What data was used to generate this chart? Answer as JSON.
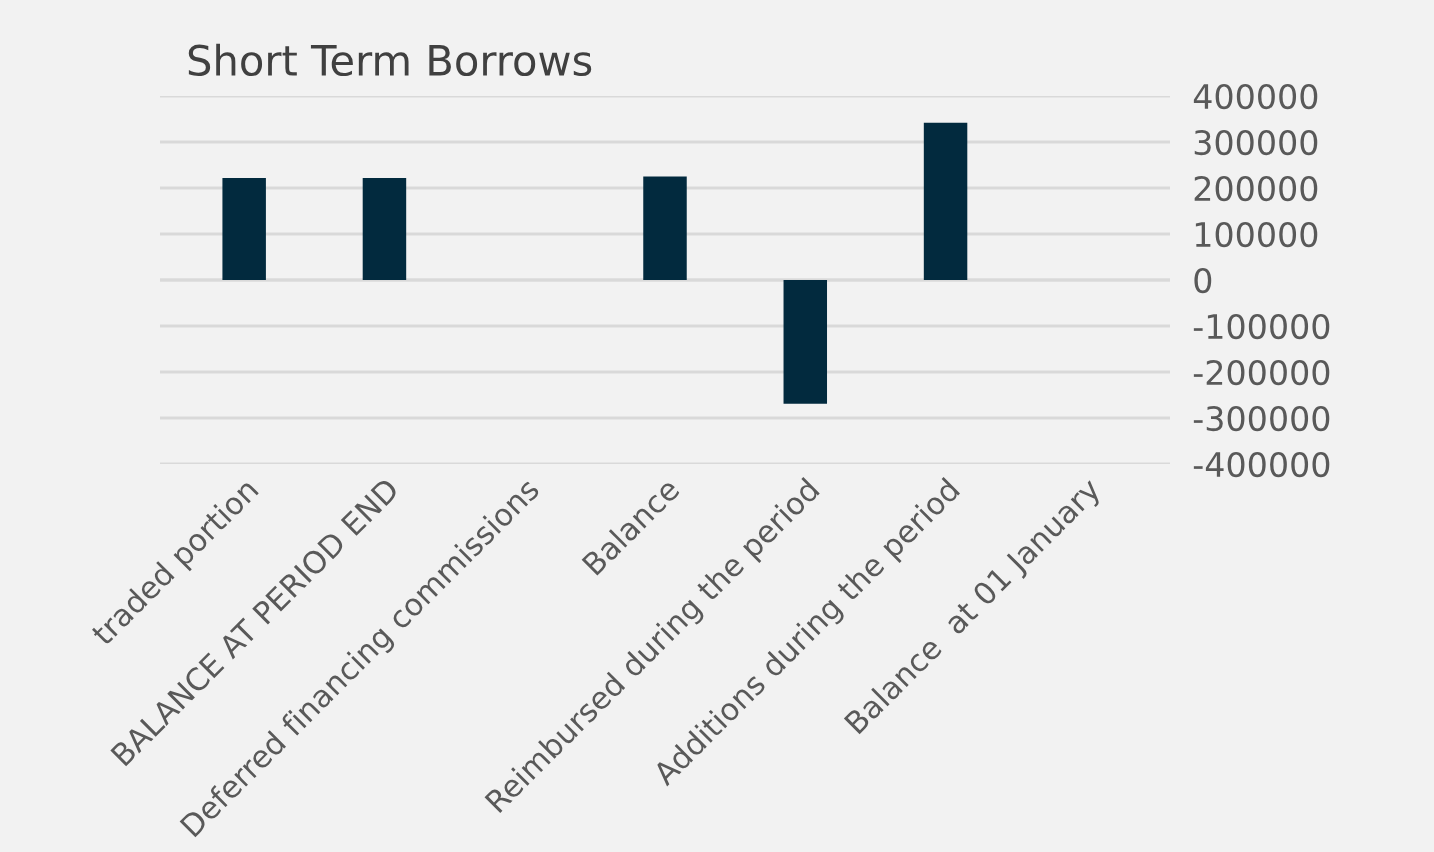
{
  "chart_data": {
    "type": "bar",
    "title": "Short Term Borrows",
    "categories": [
      "traded portion",
      "BALANCE AT PERIOD END",
      "Deferred financing commissions",
      "Balance",
      "Reimbursed during the period",
      "Additions during the period",
      "Balance  at 01 January"
    ],
    "values": [
      222000,
      222000,
      0,
      225000,
      -269000,
      342000,
      0
    ],
    "color": "#022a3e",
    "ylim": [
      -400000,
      400000
    ],
    "yticks": [
      -400000,
      -300000,
      -200000,
      -100000,
      0,
      100000,
      200000,
      300000,
      400000
    ],
    "grid": "y"
  }
}
